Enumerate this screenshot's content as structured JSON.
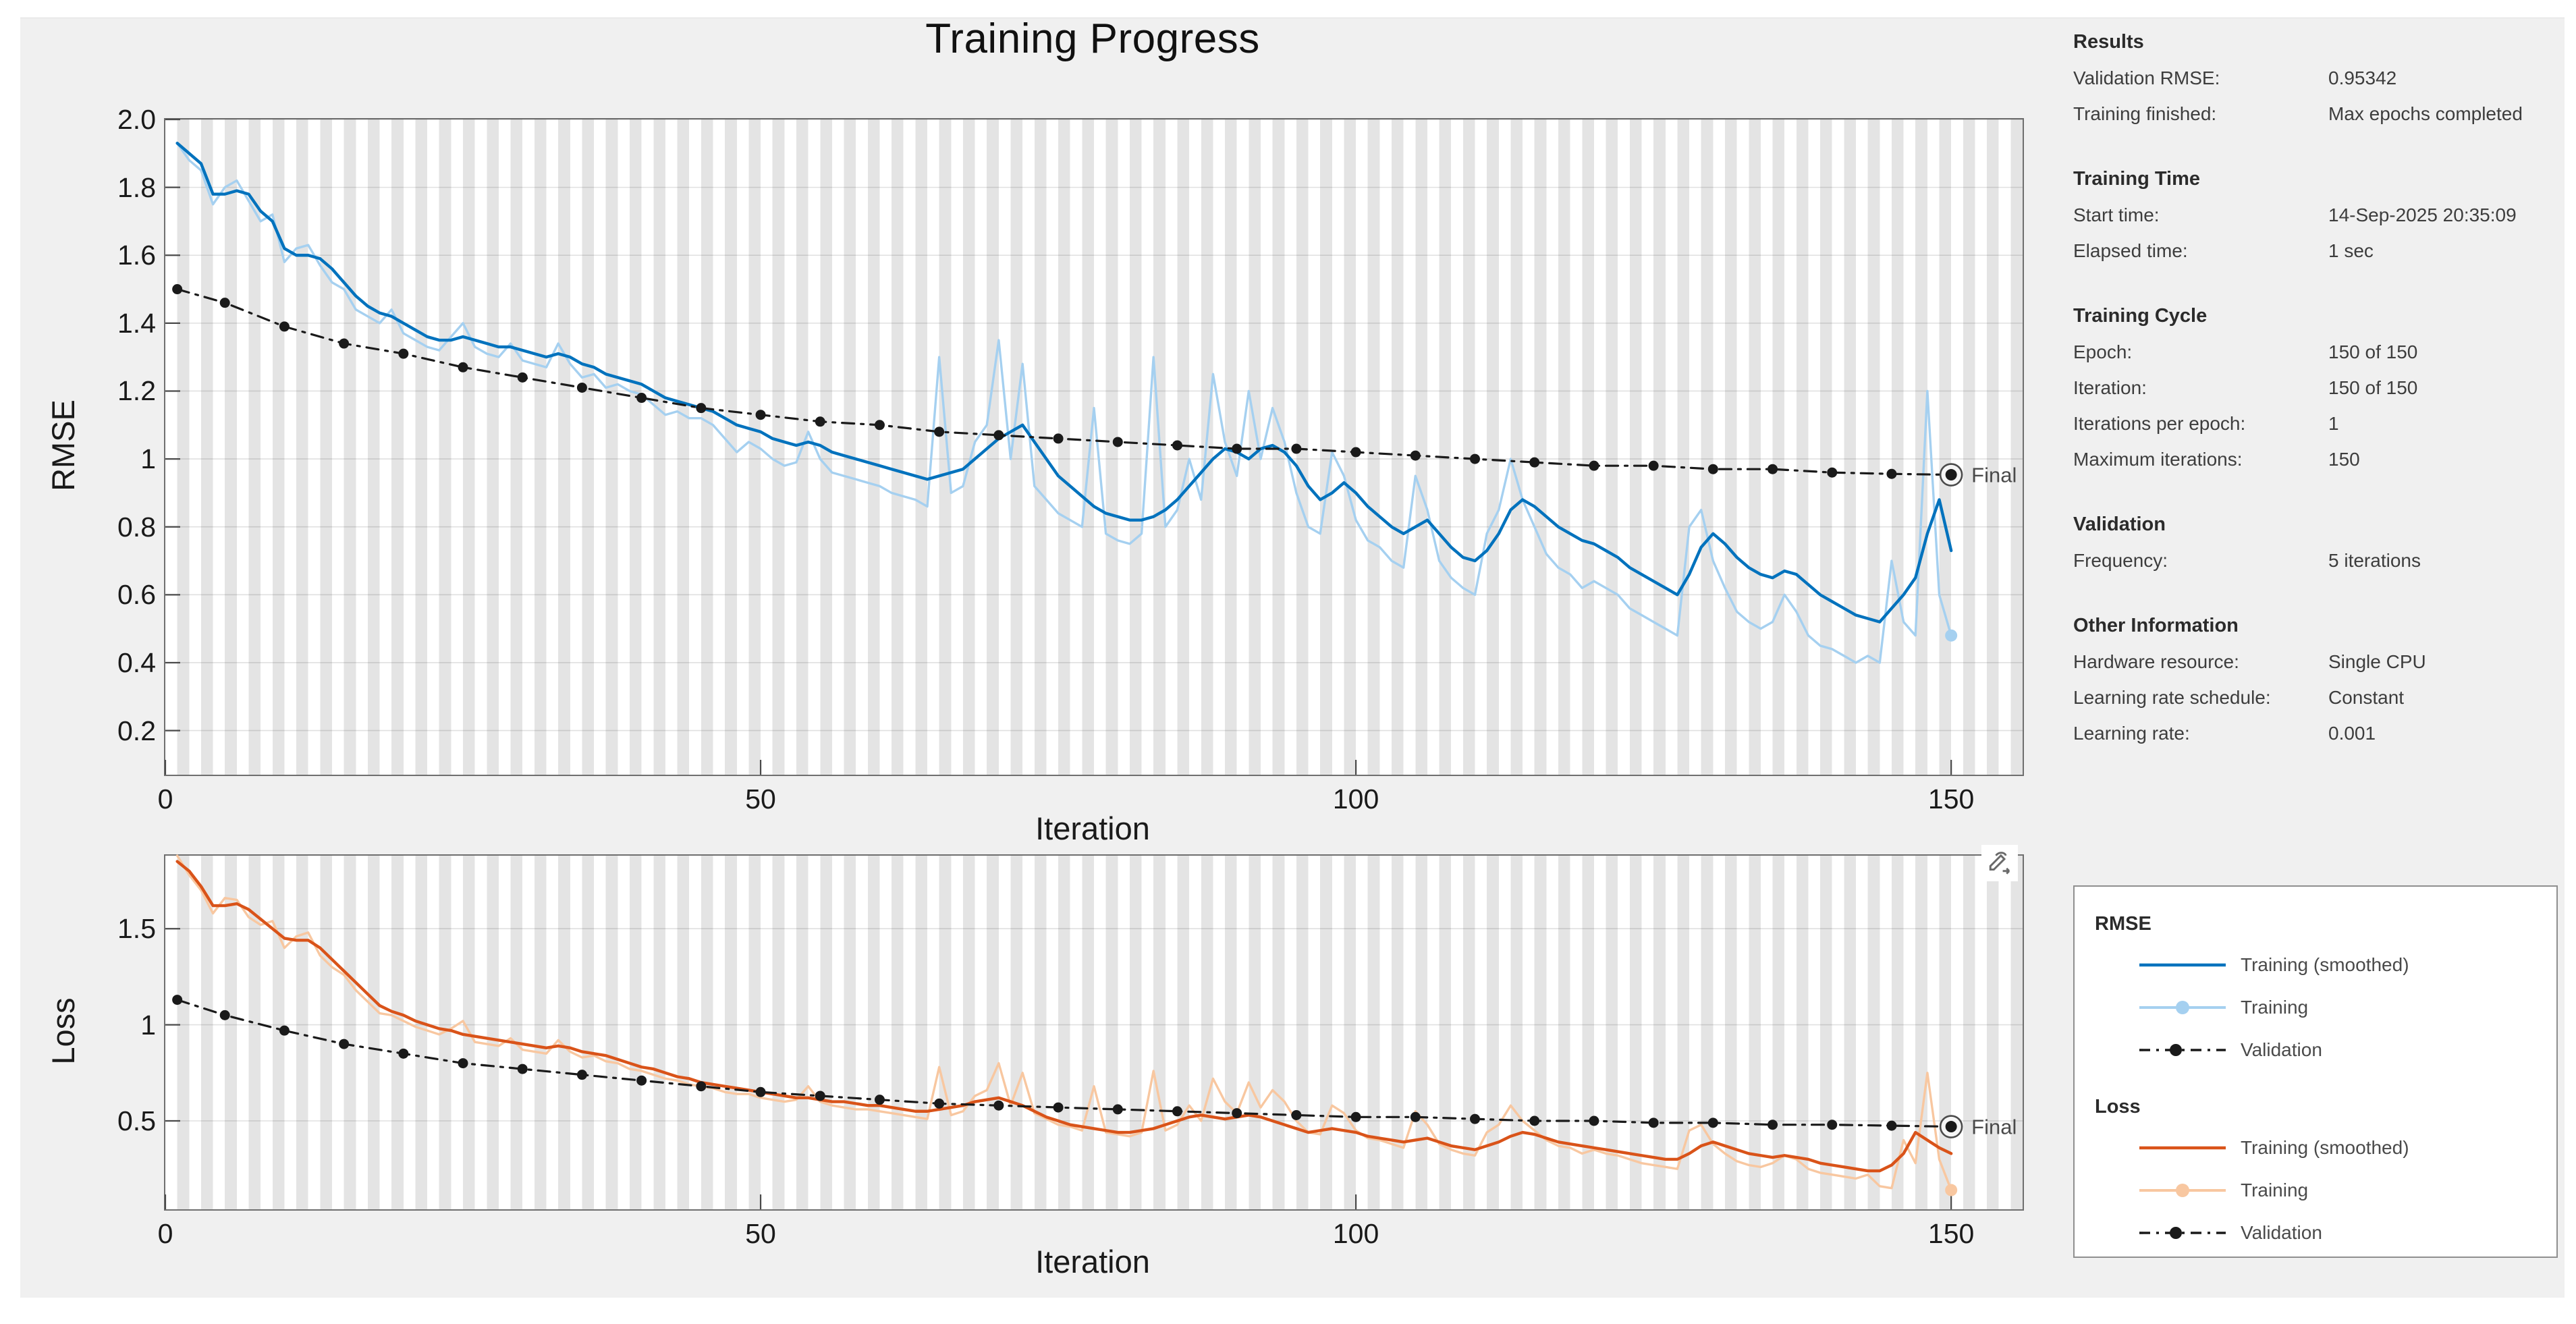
{
  "title": "Training Progress",
  "colors": {
    "rmse_smoothed": "#0072BD",
    "rmse_raw": "#A5D0F0",
    "loss_smoothed": "#D95319",
    "loss_raw": "#F8C7A0",
    "validation": "#1a1a1a",
    "stripe": "#e4e4e4",
    "app_background": "#f0f0f0"
  },
  "info_panel": {
    "sections": [
      {
        "heading": "Results",
        "rows": [
          {
            "label": "Validation RMSE:",
            "value": "0.95342"
          },
          {
            "label": "Training finished:",
            "value": "Max epochs completed"
          }
        ]
      },
      {
        "heading": "Training Time",
        "rows": [
          {
            "label": "Start time:",
            "value": "14-Sep-2025 20:35:09"
          },
          {
            "label": "Elapsed time:",
            "value": "1 sec"
          }
        ]
      },
      {
        "heading": "Training Cycle",
        "rows": [
          {
            "label": "Epoch:",
            "value": "150 of 150"
          },
          {
            "label": "Iteration:",
            "value": "150 of 150"
          },
          {
            "label": "Iterations per epoch:",
            "value": "1"
          },
          {
            "label": "Maximum iterations:",
            "value": "150"
          }
        ]
      },
      {
        "heading": "Validation",
        "rows": [
          {
            "label": "Frequency:",
            "value": "5 iterations"
          }
        ]
      },
      {
        "heading": "Other Information",
        "rows": [
          {
            "label": "Hardware resource:",
            "value": "Single CPU"
          },
          {
            "label": "Learning rate schedule:",
            "value": "Constant"
          },
          {
            "label": "Learning rate:",
            "value": "0.001"
          }
        ]
      }
    ]
  },
  "legend": {
    "groups": [
      {
        "heading": "RMSE",
        "items": [
          {
            "label": "Training (smoothed)",
            "swatch": "solid",
            "color": "#0072BD"
          },
          {
            "label": "Training",
            "swatch": "line-marker",
            "color": "#A5D0F0"
          },
          {
            "label": "Validation",
            "swatch": "dash-marker",
            "color": "#1a1a1a"
          }
        ]
      },
      {
        "heading": "Loss",
        "items": [
          {
            "label": "Training (smoothed)",
            "swatch": "solid",
            "color": "#D95319"
          },
          {
            "label": "Training",
            "swatch": "line-marker",
            "color": "#F8C7A0"
          },
          {
            "label": "Validation",
            "swatch": "dash-marker",
            "color": "#1a1a1a"
          }
        ]
      }
    ]
  },
  "chart_data": [
    {
      "id": "rmse",
      "type": "line",
      "title": "Training Progress",
      "xlabel": "Iteration",
      "ylabel": "RMSE",
      "xlim": [
        0,
        156
      ],
      "ylim": [
        0.07,
        2.0
      ],
      "xtick_values": [
        0,
        50,
        100,
        150
      ],
      "xtick_labels": [
        "0",
        "50",
        "100",
        "150"
      ],
      "ytick_values": [
        2.0,
        1.8,
        1.6,
        1.4,
        1.2,
        1.0,
        0.8,
        0.6,
        0.4,
        0.2
      ],
      "ytick_labels": [
        "2.0",
        "1.8",
        "1.6",
        "1.4",
        "1.2",
        "1",
        "0.8",
        "0.6",
        "0.4",
        "0.2"
      ],
      "epoch_width_iterations": 1,
      "final_label": "Final",
      "series": {
        "training_raw": {
          "name": "Training",
          "color": "#A5D0F0",
          "x_start": 1,
          "x_step": 1,
          "values": [
            1.93,
            1.88,
            1.85,
            1.75,
            1.8,
            1.82,
            1.76,
            1.7,
            1.72,
            1.58,
            1.62,
            1.63,
            1.57,
            1.52,
            1.5,
            1.44,
            1.42,
            1.4,
            1.44,
            1.37,
            1.35,
            1.33,
            1.32,
            1.36,
            1.4,
            1.33,
            1.31,
            1.3,
            1.34,
            1.29,
            1.28,
            1.27,
            1.34,
            1.28,
            1.24,
            1.25,
            1.21,
            1.22,
            1.2,
            1.19,
            1.16,
            1.13,
            1.14,
            1.12,
            1.12,
            1.1,
            1.06,
            1.02,
            1.05,
            1.03,
            1.0,
            0.98,
            0.99,
            1.08,
            1.0,
            0.96,
            0.95,
            0.94,
            0.93,
            0.92,
            0.9,
            0.89,
            0.88,
            0.86,
            1.3,
            0.9,
            0.92,
            1.05,
            1.1,
            1.35,
            1.0,
            1.28,
            0.92,
            0.88,
            0.84,
            0.82,
            0.8,
            1.15,
            0.78,
            0.76,
            0.75,
            0.78,
            1.3,
            0.8,
            0.85,
            1.0,
            0.88,
            1.25,
            1.05,
            0.95,
            1.2,
            1.0,
            1.15,
            1.05,
            0.9,
            0.8,
            0.78,
            1.02,
            0.95,
            0.82,
            0.76,
            0.74,
            0.7,
            0.68,
            0.95,
            0.85,
            0.7,
            0.65,
            0.62,
            0.6,
            0.78,
            0.85,
            1.0,
            0.88,
            0.8,
            0.72,
            0.68,
            0.66,
            0.62,
            0.64,
            0.62,
            0.6,
            0.56,
            0.54,
            0.52,
            0.5,
            0.48,
            0.8,
            0.85,
            0.7,
            0.62,
            0.55,
            0.52,
            0.5,
            0.52,
            0.6,
            0.55,
            0.48,
            0.45,
            0.44,
            0.42,
            0.4,
            0.42,
            0.4,
            0.7,
            0.52,
            0.48,
            1.2,
            0.6,
            0.48
          ],
          "end_marker": true
        },
        "training_smoothed": {
          "name": "Training (smoothed)",
          "color": "#0072BD",
          "x_start": 1,
          "x_step": 1,
          "values": [
            1.93,
            1.9,
            1.87,
            1.78,
            1.78,
            1.79,
            1.78,
            1.73,
            1.7,
            1.62,
            1.6,
            1.6,
            1.59,
            1.56,
            1.52,
            1.48,
            1.45,
            1.43,
            1.42,
            1.4,
            1.38,
            1.36,
            1.35,
            1.35,
            1.36,
            1.35,
            1.34,
            1.33,
            1.33,
            1.32,
            1.31,
            1.3,
            1.31,
            1.3,
            1.28,
            1.27,
            1.25,
            1.24,
            1.23,
            1.22,
            1.2,
            1.18,
            1.17,
            1.16,
            1.15,
            1.14,
            1.12,
            1.1,
            1.09,
            1.08,
            1.06,
            1.05,
            1.04,
            1.05,
            1.04,
            1.02,
            1.01,
            1.0,
            0.99,
            0.98,
            0.97,
            0.96,
            0.95,
            0.94,
            0.95,
            0.96,
            0.97,
            1.0,
            1.03,
            1.06,
            1.08,
            1.1,
            1.05,
            1.0,
            0.95,
            0.92,
            0.89,
            0.86,
            0.84,
            0.83,
            0.82,
            0.82,
            0.83,
            0.85,
            0.88,
            0.92,
            0.96,
            1.0,
            1.03,
            1.02,
            1.0,
            1.03,
            1.04,
            1.02,
            0.98,
            0.92,
            0.88,
            0.9,
            0.93,
            0.9,
            0.86,
            0.83,
            0.8,
            0.78,
            0.8,
            0.82,
            0.78,
            0.74,
            0.71,
            0.7,
            0.73,
            0.78,
            0.85,
            0.88,
            0.86,
            0.83,
            0.8,
            0.78,
            0.76,
            0.75,
            0.73,
            0.71,
            0.68,
            0.66,
            0.64,
            0.62,
            0.6,
            0.66,
            0.74,
            0.78,
            0.75,
            0.71,
            0.68,
            0.66,
            0.65,
            0.67,
            0.66,
            0.63,
            0.6,
            0.58,
            0.56,
            0.54,
            0.53,
            0.52,
            0.56,
            0.6,
            0.65,
            0.78,
            0.88,
            0.73
          ]
        },
        "validation": {
          "name": "Validation",
          "color": "#1a1a1a",
          "x": [
            1,
            5,
            10,
            15,
            20,
            25,
            30,
            35,
            40,
            45,
            50,
            55,
            60,
            65,
            70,
            75,
            80,
            85,
            90,
            95,
            100,
            105,
            110,
            115,
            120,
            125,
            130,
            135,
            140,
            145,
            150
          ],
          "values": [
            1.5,
            1.46,
            1.39,
            1.34,
            1.31,
            1.27,
            1.24,
            1.21,
            1.18,
            1.15,
            1.13,
            1.11,
            1.1,
            1.08,
            1.07,
            1.06,
            1.05,
            1.04,
            1.03,
            1.03,
            1.02,
            1.01,
            1.0,
            0.99,
            0.98,
            0.98,
            0.97,
            0.97,
            0.96,
            0.956,
            0.95342
          ],
          "final_value": 0.95342
        }
      }
    },
    {
      "id": "loss",
      "type": "line",
      "xlabel": "Iteration",
      "ylabel": "Loss",
      "xlim": [
        0,
        156
      ],
      "ylim": [
        0.04,
        1.88
      ],
      "xtick_values": [
        0,
        50,
        100,
        150
      ],
      "xtick_labels": [
        "0",
        "50",
        "100",
        "150"
      ],
      "ytick_values": [
        1.5,
        1.0,
        0.5
      ],
      "ytick_labels": [
        "1.5",
        "1",
        "0.5"
      ],
      "epoch_width_iterations": 1,
      "final_label": "Final",
      "series": {
        "training_raw": {
          "name": "Training",
          "color": "#F8C7A0",
          "x_start": 1,
          "x_step": 1,
          "values": [
            1.88,
            1.78,
            1.7,
            1.58,
            1.66,
            1.65,
            1.56,
            1.52,
            1.54,
            1.4,
            1.46,
            1.48,
            1.36,
            1.3,
            1.26,
            1.18,
            1.12,
            1.06,
            1.05,
            1.02,
            0.99,
            0.97,
            0.95,
            0.98,
            1.02,
            0.91,
            0.9,
            0.89,
            0.93,
            0.87,
            0.86,
            0.85,
            0.92,
            0.86,
            0.83,
            0.84,
            0.81,
            0.8,
            0.77,
            0.76,
            0.74,
            0.72,
            0.71,
            0.69,
            0.68,
            0.67,
            0.65,
            0.64,
            0.64,
            0.62,
            0.61,
            0.6,
            0.61,
            0.68,
            0.6,
            0.58,
            0.57,
            0.56,
            0.56,
            0.55,
            0.54,
            0.53,
            0.52,
            0.51,
            0.78,
            0.53,
            0.55,
            0.63,
            0.66,
            0.8,
            0.58,
            0.75,
            0.54,
            0.51,
            0.48,
            0.47,
            0.45,
            0.68,
            0.44,
            0.43,
            0.42,
            0.44,
            0.76,
            0.45,
            0.48,
            0.58,
            0.5,
            0.72,
            0.6,
            0.54,
            0.7,
            0.57,
            0.66,
            0.6,
            0.5,
            0.44,
            0.43,
            0.58,
            0.54,
            0.45,
            0.41,
            0.4,
            0.38,
            0.36,
            0.55,
            0.48,
            0.38,
            0.35,
            0.33,
            0.32,
            0.44,
            0.48,
            0.58,
            0.5,
            0.45,
            0.4,
            0.37,
            0.36,
            0.33,
            0.35,
            0.33,
            0.32,
            0.3,
            0.28,
            0.27,
            0.26,
            0.25,
            0.45,
            0.48,
            0.38,
            0.33,
            0.29,
            0.27,
            0.26,
            0.28,
            0.32,
            0.3,
            0.25,
            0.23,
            0.22,
            0.21,
            0.2,
            0.22,
            0.16,
            0.15,
            0.4,
            0.28,
            0.75,
            0.3,
            0.14
          ],
          "end_marker": true
        },
        "training_smoothed": {
          "name": "Training (smoothed)",
          "color": "#D95319",
          "x_start": 1,
          "x_step": 1,
          "values": [
            1.85,
            1.8,
            1.72,
            1.62,
            1.62,
            1.63,
            1.6,
            1.55,
            1.5,
            1.45,
            1.44,
            1.44,
            1.4,
            1.34,
            1.28,
            1.22,
            1.16,
            1.1,
            1.07,
            1.05,
            1.02,
            1.0,
            0.98,
            0.97,
            0.95,
            0.94,
            0.93,
            0.92,
            0.91,
            0.9,
            0.89,
            0.88,
            0.89,
            0.88,
            0.86,
            0.85,
            0.84,
            0.82,
            0.8,
            0.78,
            0.77,
            0.75,
            0.73,
            0.72,
            0.7,
            0.69,
            0.68,
            0.67,
            0.66,
            0.65,
            0.64,
            0.63,
            0.62,
            0.62,
            0.61,
            0.6,
            0.6,
            0.59,
            0.58,
            0.58,
            0.57,
            0.56,
            0.55,
            0.55,
            0.56,
            0.57,
            0.58,
            0.6,
            0.61,
            0.62,
            0.6,
            0.58,
            0.55,
            0.52,
            0.5,
            0.48,
            0.47,
            0.46,
            0.45,
            0.44,
            0.44,
            0.45,
            0.46,
            0.48,
            0.5,
            0.52,
            0.53,
            0.52,
            0.51,
            0.52,
            0.53,
            0.52,
            0.5,
            0.48,
            0.46,
            0.44,
            0.45,
            0.46,
            0.45,
            0.44,
            0.42,
            0.41,
            0.4,
            0.39,
            0.4,
            0.41,
            0.39,
            0.37,
            0.36,
            0.35,
            0.37,
            0.39,
            0.42,
            0.44,
            0.43,
            0.41,
            0.39,
            0.38,
            0.37,
            0.36,
            0.35,
            0.34,
            0.33,
            0.32,
            0.31,
            0.3,
            0.3,
            0.33,
            0.37,
            0.39,
            0.37,
            0.35,
            0.33,
            0.32,
            0.31,
            0.32,
            0.31,
            0.3,
            0.28,
            0.27,
            0.26,
            0.25,
            0.24,
            0.24,
            0.27,
            0.33,
            0.44,
            0.4,
            0.36,
            0.33
          ]
        },
        "validation": {
          "name": "Validation",
          "color": "#1a1a1a",
          "x": [
            1,
            5,
            10,
            15,
            20,
            25,
            30,
            35,
            40,
            45,
            50,
            55,
            60,
            65,
            70,
            75,
            80,
            85,
            90,
            95,
            100,
            105,
            110,
            115,
            120,
            125,
            130,
            135,
            140,
            145,
            150
          ],
          "values": [
            1.13,
            1.05,
            0.97,
            0.9,
            0.85,
            0.8,
            0.77,
            0.74,
            0.71,
            0.68,
            0.65,
            0.63,
            0.61,
            0.59,
            0.58,
            0.57,
            0.56,
            0.55,
            0.54,
            0.53,
            0.52,
            0.52,
            0.51,
            0.5,
            0.5,
            0.49,
            0.49,
            0.48,
            0.48,
            0.475,
            0.47
          ],
          "final_value": 0.47
        }
      }
    }
  ]
}
